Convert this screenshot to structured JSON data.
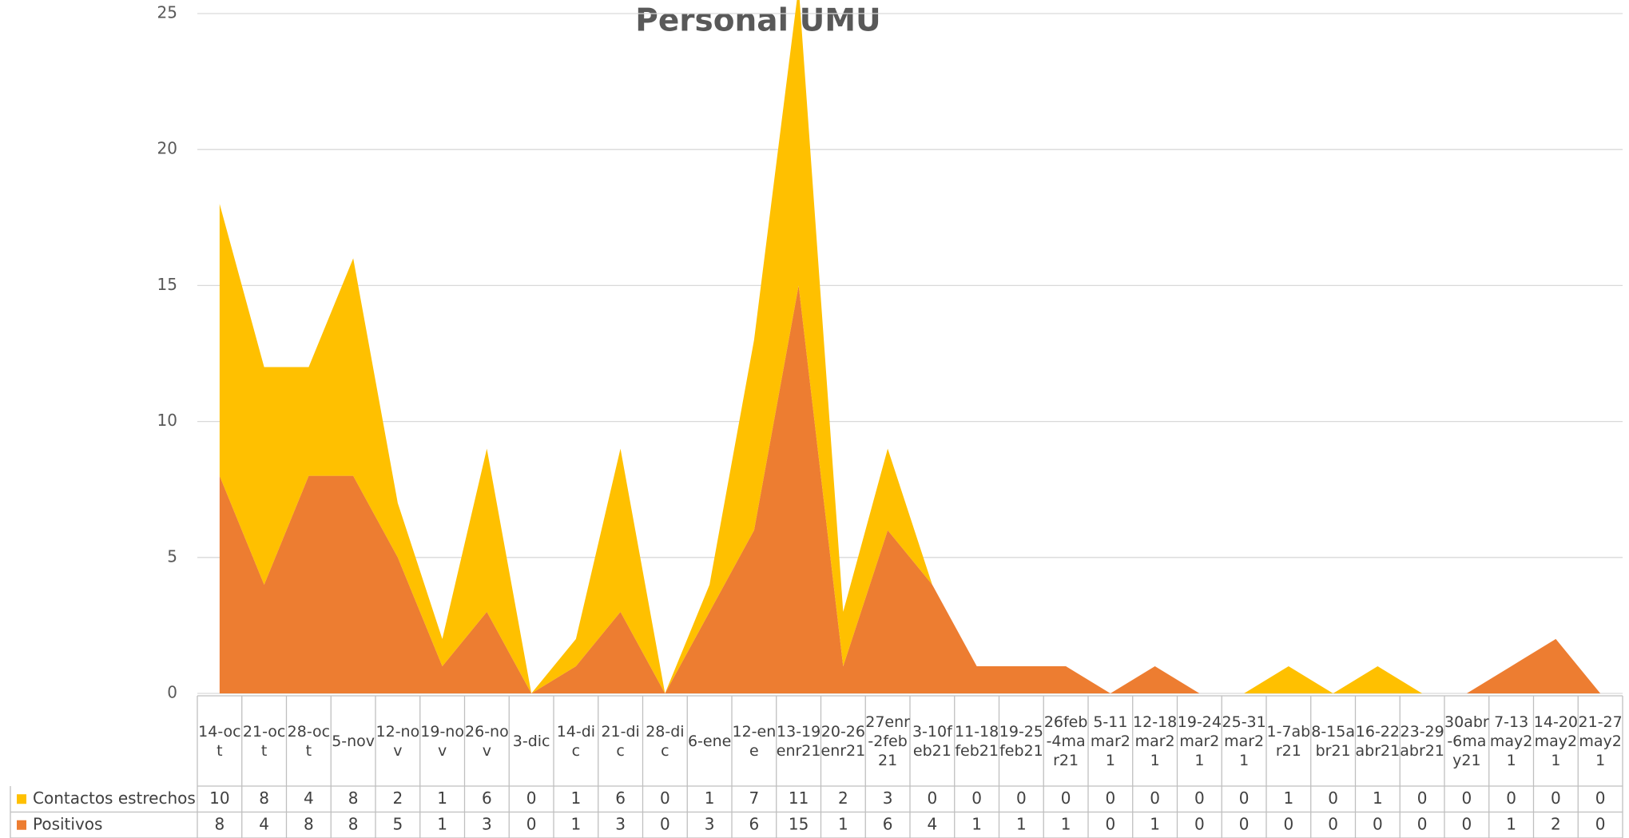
{
  "chart_data": {
    "type": "stacked_area",
    "title": "Personal UMU",
    "categories": [
      "14-oct",
      "21-oct",
      "28-oct",
      "5-nov",
      "12-nov",
      "19-nov",
      "26-nov",
      "3-dic",
      "14-dic",
      "21-dic",
      "28-dic",
      "6-ene",
      "12-ene",
      "13-19enr21",
      "20-26enr21",
      "27enr-2feb21",
      "3-10feb21",
      "11-18feb21",
      "19-25feb21",
      "26feb-4mar21",
      "5-11mar21",
      "12-18mar21",
      "19-24mar21",
      "25-31mar21",
      "1-7abr21",
      "8-15abr21",
      "16-22abr21",
      "23-29abr21",
      "30abr-6may21",
      "7-13may21",
      "14-20may21",
      "21-27may21"
    ],
    "series": [
      {
        "name": "Contactos estrechos",
        "color": "#FFC000",
        "values": [
          10,
          8,
          4,
          8,
          2,
          1,
          6,
          0,
          1,
          6,
          0,
          1,
          7,
          11,
          2,
          3,
          0,
          0,
          0,
          0,
          0,
          0,
          0,
          0,
          1,
          0,
          1,
          0,
          0,
          0,
          0,
          0
        ]
      },
      {
        "name": "Positivos",
        "color": "#ED7D31",
        "values": [
          8,
          4,
          8,
          8,
          5,
          1,
          3,
          0,
          1,
          3,
          0,
          3,
          6,
          15,
          1,
          6,
          4,
          1,
          1,
          1,
          0,
          1,
          0,
          0,
          0,
          0,
          0,
          0,
          0,
          1,
          2,
          0
        ]
      }
    ],
    "ylim": [
      0,
      25
    ],
    "yticks": [
      0,
      5,
      10,
      15,
      20,
      25
    ],
    "grid": true,
    "data_table": true
  }
}
